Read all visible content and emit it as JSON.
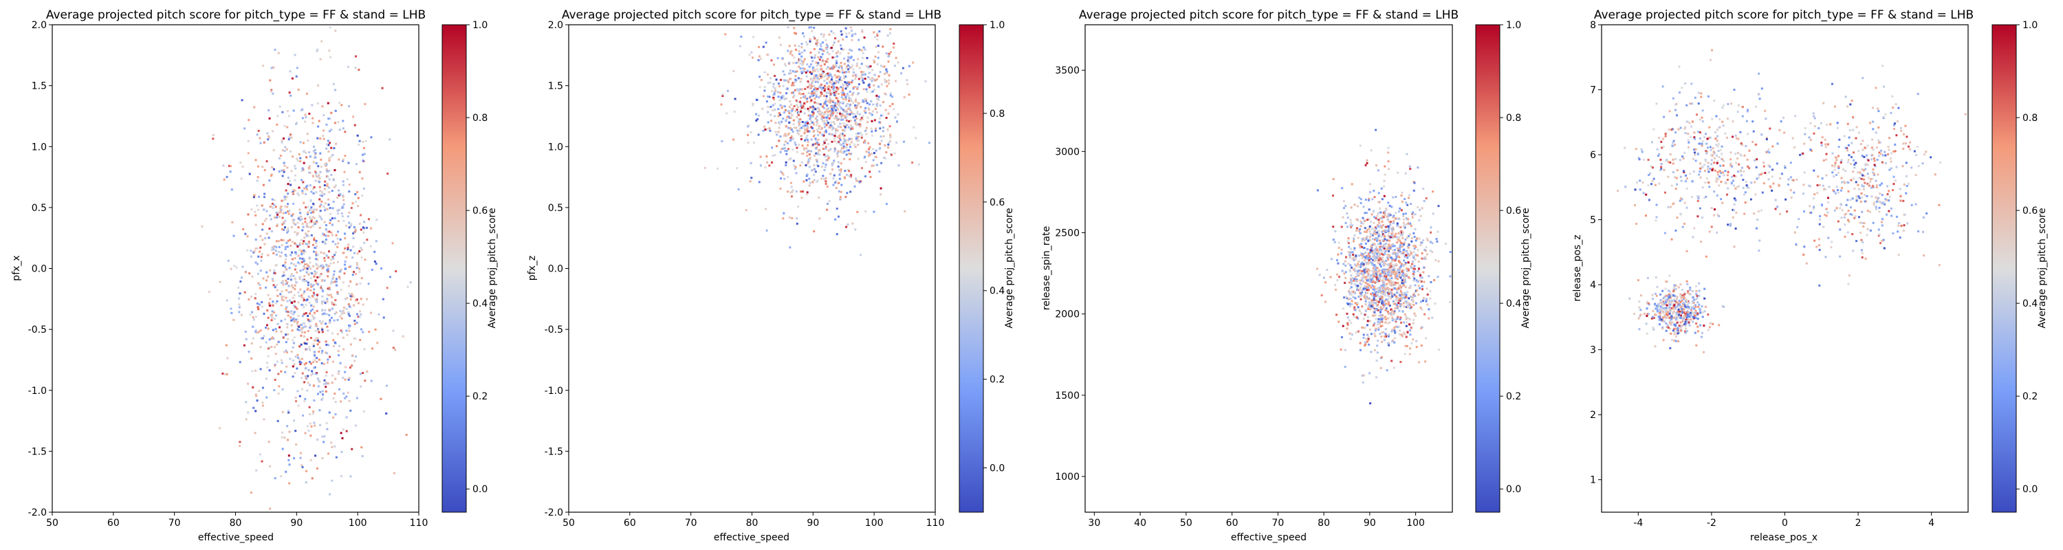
{
  "chart_data": [
    {
      "type": "heatmap",
      "title": "Average projected pitch score for pitch_type = FF & stand = LHB",
      "xlabel": "effective_speed",
      "ylabel": "pfx_x",
      "xlim": [
        50,
        110
      ],
      "ylim": [
        -2.0,
        2.0
      ],
      "xticks": [
        "50",
        "60",
        "70",
        "80",
        "90",
        "100",
        "110"
      ],
      "yticks": [
        "-2.0",
        "-1.5",
        "-1.0",
        "-0.5",
        "0.0",
        "0.5",
        "1.0",
        "1.5",
        "2.0"
      ],
      "colorbar": {
        "label": "Average proj_pitch_score",
        "colormap": "coolwarm",
        "low_color": "#3b4cc0",
        "mid_color": "#dddddd",
        "high_color": "#b40426",
        "ticks": [
          "0.0",
          "0.2",
          "0.4",
          "0.6",
          "0.8",
          "1.0"
        ],
        "range": [
          -0.05,
          1.0
        ]
      },
      "point_cloud": {
        "x_center": 92,
        "x_spread": 5.5,
        "y_center": 0.0,
        "y_spread": 0.75
      }
    },
    {
      "type": "heatmap",
      "title": "Average projected pitch score for pitch_type = FF & stand = LHB",
      "xlabel": "effective_speed",
      "ylabel": "pfx_z",
      "xlim": [
        50,
        110
      ],
      "ylim": [
        -2.0,
        2.0
      ],
      "xticks": [
        "50",
        "60",
        "70",
        "80",
        "90",
        "100",
        "110"
      ],
      "yticks": [
        "-2.0",
        "-1.5",
        "-1.0",
        "-0.5",
        "0.0",
        "0.5",
        "1.0",
        "1.5",
        "2.0"
      ],
      "colorbar": {
        "label": "Average proj_pitch_score",
        "colormap": "coolwarm",
        "low_color": "#3b4cc0",
        "mid_color": "#dddddd",
        "high_color": "#b40426",
        "ticks": [
          "0.0",
          "0.2",
          "0.4",
          "0.6",
          "0.8",
          "1.0"
        ],
        "range": [
          -0.1,
          1.0
        ]
      },
      "point_cloud": {
        "x_center": 92,
        "x_spread": 5.5,
        "y_center": 1.35,
        "y_spread": 0.35
      }
    },
    {
      "type": "heatmap",
      "title": "Average projected pitch score for pitch_type = FF & stand = LHB",
      "xlabel": "effective_speed",
      "ylabel": "release_spin_rate",
      "xlim": [
        28,
        108
      ],
      "ylim": [
        780,
        3780
      ],
      "xticks": [
        "30",
        "40",
        "50",
        "60",
        "70",
        "80",
        "90",
        "100"
      ],
      "yticks": [
        "1000",
        "1500",
        "2000",
        "2500",
        "3000",
        "3500"
      ],
      "colorbar": {
        "label": "Average proj_pitch_score",
        "colormap": "coolwarm",
        "low_color": "#3b4cc0",
        "mid_color": "#dddddd",
        "high_color": "#b40426",
        "ticks": [
          "0.0",
          "0.2",
          "0.4",
          "0.6",
          "0.8",
          "1.0"
        ],
        "range": [
          -0.05,
          1.0
        ]
      },
      "point_cloud": {
        "x_center": 93,
        "x_spread": 4.5,
        "y_center": 2270,
        "y_spread": 230
      }
    },
    {
      "type": "heatmap",
      "title": "Average projected pitch score for pitch_type = FF & stand = LHB",
      "xlabel": "release_pos_x",
      "ylabel": "release_pos_z",
      "xlim": [
        -5.0,
        5.0
      ],
      "ylim": [
        0.5,
        8.0
      ],
      "xticks": [
        "-4",
        "-2",
        "0",
        "2",
        "4"
      ],
      "yticks": [
        "1",
        "2",
        "3",
        "4",
        "5",
        "6",
        "7",
        "8"
      ],
      "colorbar": {
        "label": "Average proj_pitch_score",
        "colormap": "coolwarm",
        "low_color": "#3b4cc0",
        "mid_color": "#dddddd",
        "high_color": "#b40426",
        "ticks": [
          "0.0",
          "0.2",
          "0.4",
          "0.6",
          "0.8",
          "1.0"
        ],
        "range": [
          -0.05,
          1.0
        ]
      },
      "point_cloud": {
        "clusters": [
          {
            "x_center": -2.0,
            "x_spread": 1.1,
            "y_center": 5.9,
            "y_spread": 0.55
          },
          {
            "x_center": 2.0,
            "x_spread": 0.9,
            "y_center": 5.7,
            "y_spread": 0.55
          },
          {
            "x_center": -3.0,
            "x_spread": 0.4,
            "y_center": 3.6,
            "y_spread": 0.2
          }
        ]
      }
    }
  ]
}
